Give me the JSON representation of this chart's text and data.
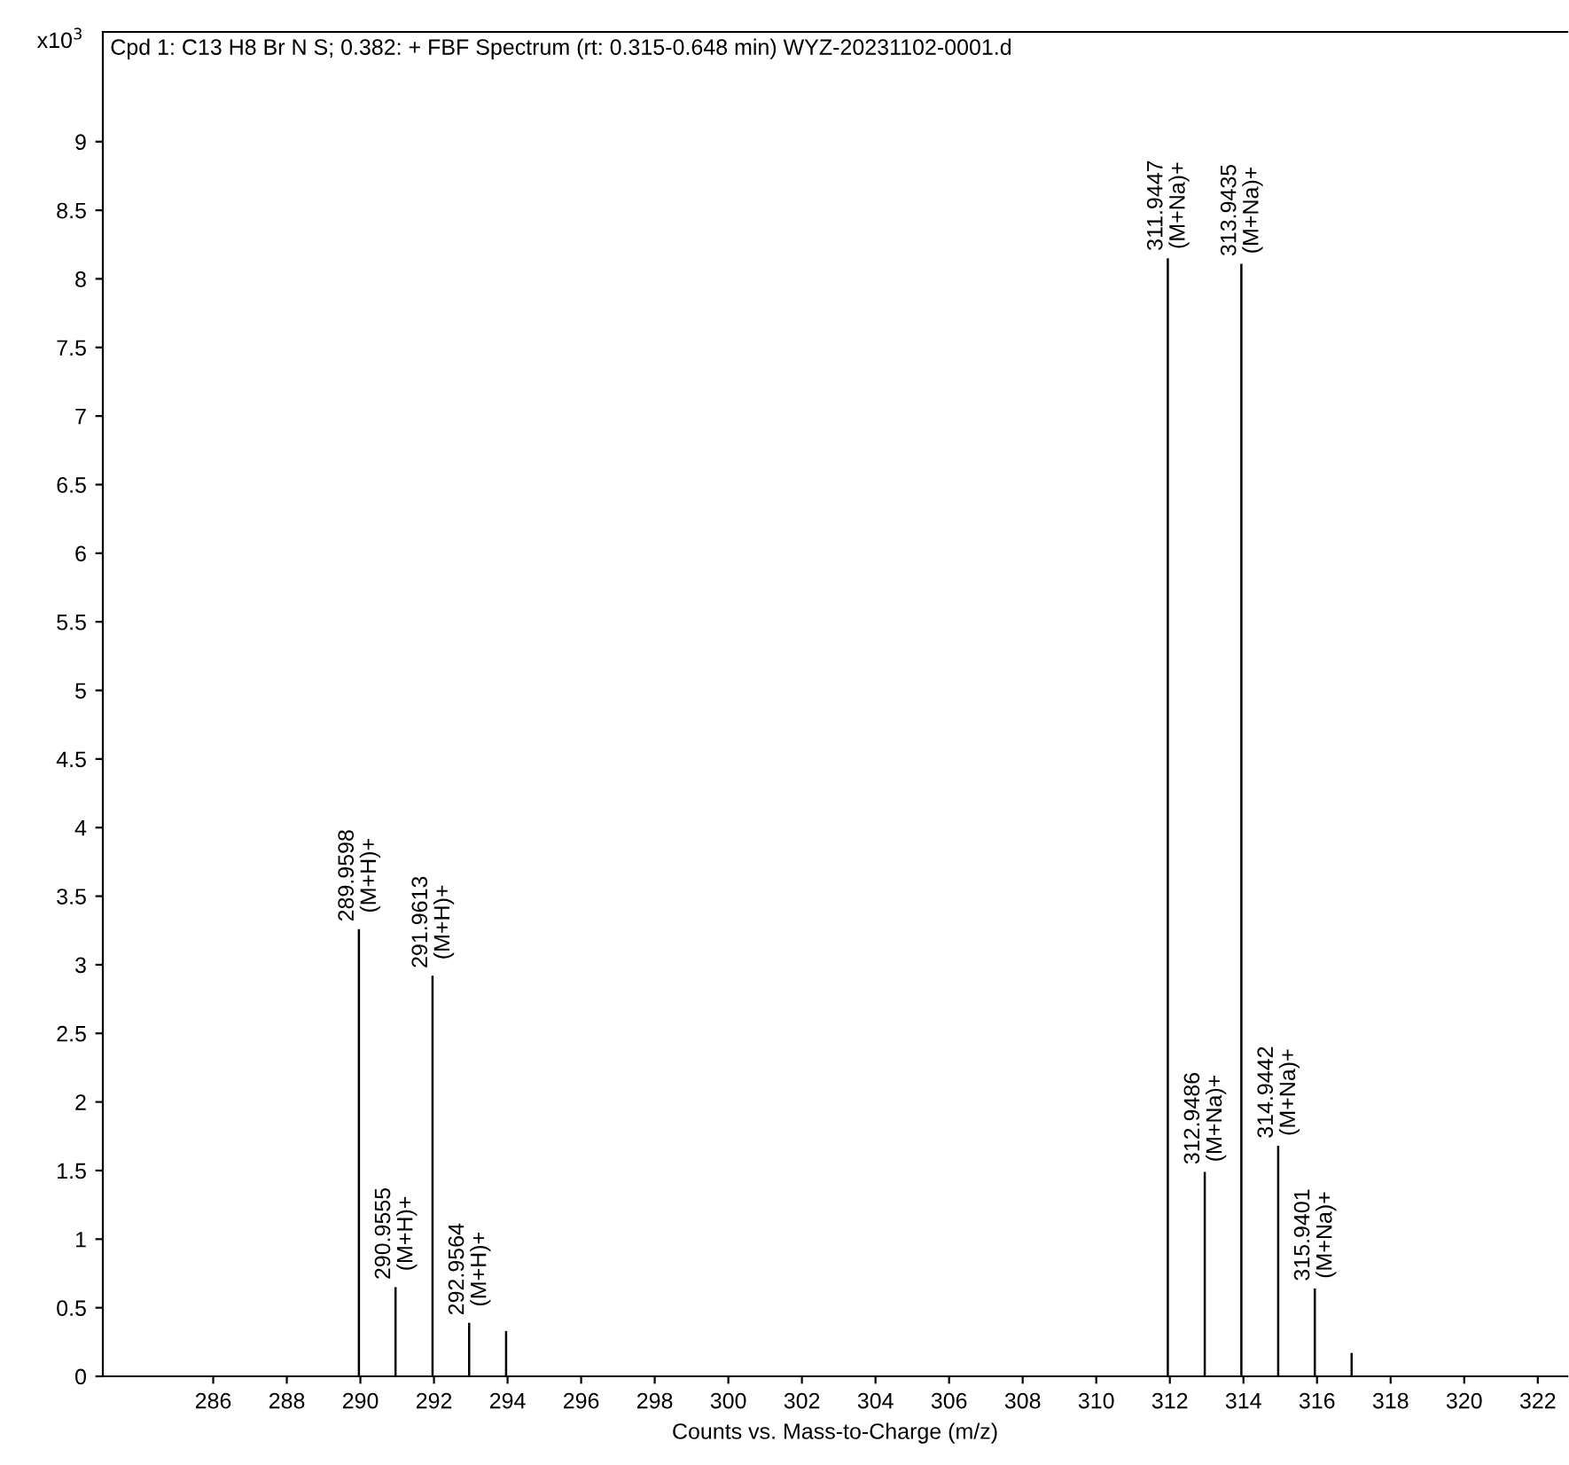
{
  "chart_data": {
    "type": "bar",
    "title": "Cpd 1: C13 H8 Br N S; 0.382: + FBF Spectrum (rt: 0.315-0.648 min) WYZ-20231102-0001.d",
    "xlabel": "Counts vs. Mass-to-Charge (m/z)",
    "ylabel": "x10$^{3}$",
    "x": [
      289.9598,
      290.9555,
      291.9613,
      292.9564,
      293.96,
      311.9447,
      312.9486,
      313.9435,
      314.9442,
      315.9401,
      316.94
    ],
    "values": [
      3.26,
      0.65,
      2.92,
      0.39,
      0.33,
      8.15,
      1.49,
      8.11,
      1.68,
      0.64,
      0.17
    ],
    "color": "#000000",
    "annotations": [
      {
        "text": "289.9598\n(M+H)+",
        "x": 289.9598,
        "y": 3.26
      },
      {
        "text": "290.9555\n(M+H)+",
        "x": 290.9555,
        "y": 0.65
      },
      {
        "text": "291.9613\n(M+H)+",
        "x": 291.9613,
        "y": 2.92
      },
      {
        "text": "292.9564\n(M+H)+",
        "x": 292.9564,
        "y": 0.39
      },
      {
        "text": "311.9447\n(M+Na)+",
        "x": 311.9447,
        "y": 8.15
      },
      {
        "text": "312.9486\n(M+Na)+",
        "x": 312.9486,
        "y": 1.49
      },
      {
        "text": "313.9435\n(M+Na)+",
        "x": 313.9435,
        "y": 8.11
      },
      {
        "text": "314.9442\n(M+Na)+",
        "x": 314.9442,
        "y": 1.68
      },
      {
        "text": "315.9401\n(M+Na)+",
        "x": 315.9401,
        "y": 0.64
      }
    ],
    "xlim": [
      283,
      322.8
    ],
    "ylim": [
      0,
      9.8
    ],
    "xticks": [
      286,
      288,
      290,
      292,
      294,
      296,
      298,
      300,
      302,
      304,
      306,
      308,
      310,
      312,
      314,
      316,
      318,
      320,
      322
    ],
    "yticks": [
      0,
      0.5,
      1,
      1.5,
      2,
      2.5,
      3,
      3.5,
      4,
      4.5,
      5,
      5.5,
      6,
      6.5,
      7,
      7.5,
      8,
      8.5,
      9
    ],
    "grid": false
  }
}
